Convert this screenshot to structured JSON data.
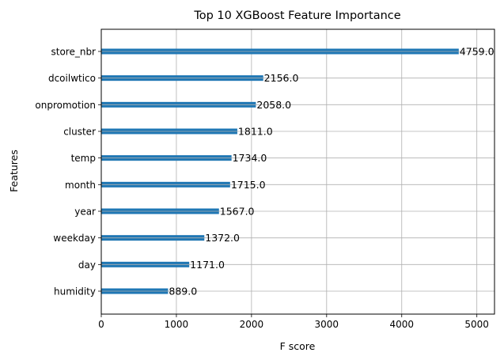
{
  "chart_data": {
    "type": "bar",
    "orientation": "horizontal",
    "title": "Top 10 XGBoost Feature Importance",
    "xlabel": "F score",
    "ylabel": "Features",
    "categories": [
      "store_nbr",
      "dcoilwtico",
      "onpromotion",
      "cluster",
      "temp",
      "month",
      "year",
      "weekday",
      "day",
      "humidity"
    ],
    "values": [
      4759,
      2156,
      2058,
      1811,
      1734,
      1715,
      1567,
      1372,
      1171,
      889
    ],
    "value_labels": [
      "4759.0",
      "2156.0",
      "2058.0",
      "1811.0",
      "1734.0",
      "1715.0",
      "1567.0",
      "1372.0",
      "1171.0",
      "889.0"
    ],
    "xlim": [
      0,
      5235
    ],
    "xticks": [
      0,
      1000,
      2000,
      3000,
      4000,
      5000
    ],
    "xtick_labels": [
      "0",
      "1000",
      "2000",
      "3000",
      "4000",
      "5000"
    ],
    "grid": true,
    "bar_color": "#1f77b4"
  }
}
